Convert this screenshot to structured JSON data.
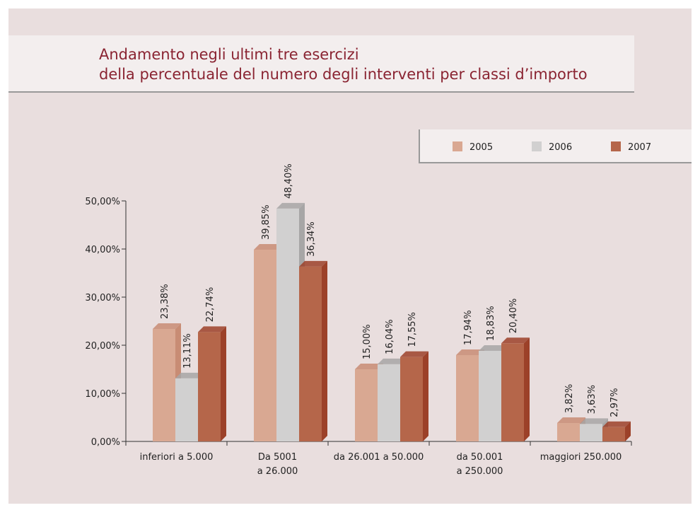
{
  "chart_data": {
    "type": "bar",
    "title": [
      "Andamento negli ultimi tre esercizi",
      "della percentuale del numero degli interventi per classi d’importo"
    ],
    "categories": [
      [
        "inferiori a 5.000"
      ],
      [
        "Da 5001",
        "a 26.000"
      ],
      [
        "da 26.001 a 50.000"
      ],
      [
        "da 50.001",
        "a 250.000"
      ],
      [
        "maggiori 250.000"
      ]
    ],
    "series": [
      {
        "name": "2005",
        "color": "#d9a892",
        "shade": "#c88c74",
        "values": [
          23.38,
          39.85,
          15.0,
          17.94,
          3.82
        ],
        "value_labels": [
          "23,38%",
          "39,85%",
          "15,00%",
          "17,94%",
          "3,82%"
        ]
      },
      {
        "name": "2006",
        "color": "#d1d0d0",
        "shade": "#a7a6a6",
        "values": [
          13.11,
          48.4,
          16.04,
          18.83,
          3.63
        ],
        "value_labels": [
          "13,11%",
          "48,40%",
          "16,04%",
          "18,83%",
          "3,63%"
        ]
      },
      {
        "name": "2007",
        "color": "#b5664a",
        "shade": "#9c4129",
        "values": [
          22.74,
          36.34,
          17.55,
          20.4,
          2.97
        ],
        "value_labels": [
          "22,74%",
          "36,34%",
          "17,55%",
          "20,40%",
          "2,97%"
        ]
      }
    ],
    "ylim": [
      0,
      50
    ],
    "yticks": [
      {
        "value": 0,
        "label": "0,00%"
      },
      {
        "value": 10,
        "label": "10,00%"
      },
      {
        "value": 20,
        "label": "20,00%"
      },
      {
        "value": 30,
        "label": "30,00%"
      },
      {
        "value": 40,
        "label": "40,00%"
      },
      {
        "value": 50,
        "label": "50,00%"
      }
    ],
    "legend": "top-right"
  }
}
